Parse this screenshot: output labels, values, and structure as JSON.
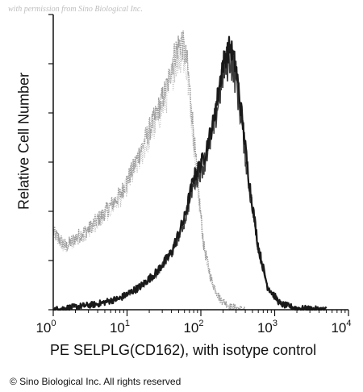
{
  "watermark": "with permission from Sino Biological Inc.",
  "copyright": "© Sino Biological Inc. All rights reserved",
  "chart_data": {
    "type": "area",
    "xlabel": "PE SELPLG(CD162), with isotype control",
    "ylabel": "Relative Cell Number",
    "x_scale": "log",
    "xlim": [
      1,
      10000
    ],
    "ylim": [
      0,
      1
    ],
    "x_tick_labels": [
      {
        "value": 1,
        "base": "10",
        "exp": "0"
      },
      {
        "value": 10,
        "base": "10",
        "exp": "1"
      },
      {
        "value": 100,
        "base": "10",
        "exp": "2"
      },
      {
        "value": 1000,
        "base": "10",
        "exp": "3"
      },
      {
        "value": 10000,
        "base": "10",
        "exp": "4"
      }
    ],
    "y_tick_count": 7,
    "grid": false,
    "series": [
      {
        "role": "isotype",
        "color": "#9a9a9a",
        "style": "light dotted",
        "x": [
          1,
          1.5,
          2,
          3,
          5,
          8,
          12,
          18,
          25,
          35,
          45,
          55,
          65,
          75,
          90,
          110,
          140,
          180,
          250,
          400
        ],
        "y": [
          0.27,
          0.22,
          0.25,
          0.28,
          0.34,
          0.4,
          0.49,
          0.6,
          0.68,
          0.78,
          0.9,
          0.94,
          0.86,
          0.7,
          0.45,
          0.22,
          0.1,
          0.04,
          0.01,
          0.0
        ]
      },
      {
        "role": "sample",
        "color": "#1a1a1a",
        "style": "dark dense",
        "x": [
          1,
          2,
          4,
          8,
          15,
          25,
          40,
          60,
          80,
          110,
          150,
          200,
          250,
          300,
          350,
          450,
          600,
          800,
          1200,
          2000,
          5000
        ],
        "y": [
          0.0,
          0.01,
          0.02,
          0.04,
          0.08,
          0.13,
          0.2,
          0.32,
          0.46,
          0.53,
          0.66,
          0.86,
          0.92,
          0.84,
          0.7,
          0.45,
          0.22,
          0.08,
          0.02,
          0.005,
          0.0
        ]
      }
    ]
  }
}
